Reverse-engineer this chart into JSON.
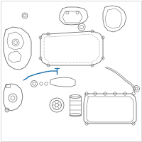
{
  "background_color": "#ffffff",
  "border_color": "#d0d0d0",
  "line_color": "#666666",
  "highlight_color": "#1a6faf",
  "figsize": [
    2.0,
    2.0
  ],
  "dpi": 100
}
